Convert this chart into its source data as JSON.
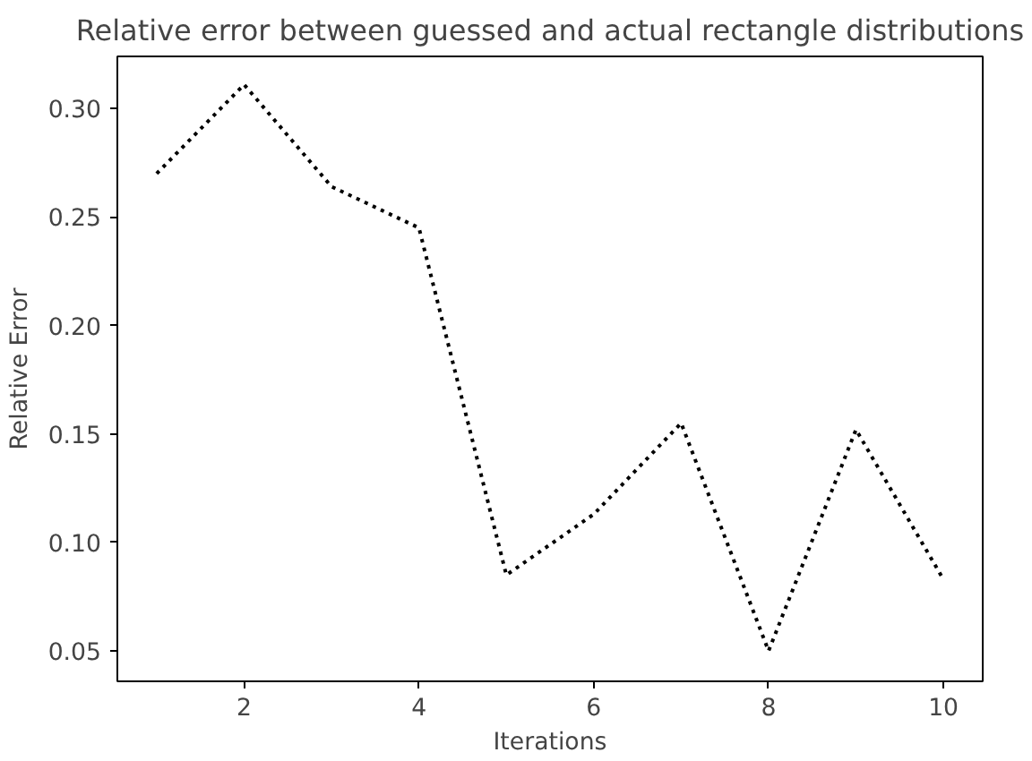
{
  "chart_data": {
    "type": "line",
    "title": "Relative error between guessed and actual rectangle distributions",
    "xlabel": "Iterations",
    "ylabel": "Relative Error",
    "x": [
      1,
      2,
      3,
      4,
      5,
      6,
      7,
      8,
      9,
      10
    ],
    "series": [
      {
        "color": "#000000",
        "values": [
          0.27,
          0.311,
          0.264,
          0.245,
          0.085,
          0.113,
          0.155,
          0.05,
          0.152,
          0.083
        ]
      }
    ],
    "xlim": [
      0.55,
      10.45
    ],
    "ylim": [
      0.036,
      0.324
    ],
    "xticks": [
      2,
      4,
      6,
      8,
      10
    ],
    "yticks": [
      {
        "value": 0.05,
        "label": "0.05"
      },
      {
        "value": 0.1,
        "label": "0.10"
      },
      {
        "value": 0.15,
        "label": "0.15"
      },
      {
        "value": 0.2,
        "label": "0.20"
      },
      {
        "value": 0.25,
        "label": "0.25"
      },
      {
        "value": 0.3,
        "label": "0.30"
      }
    ],
    "grid": false,
    "line_style": "dotted"
  }
}
